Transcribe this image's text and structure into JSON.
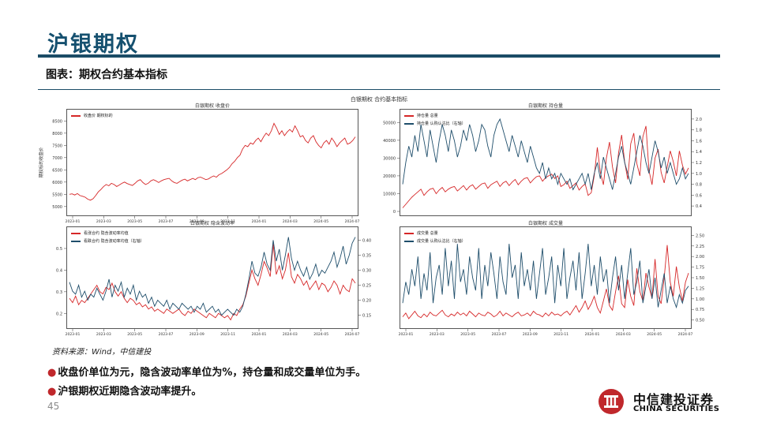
{
  "slide": {
    "title": "沪银期权",
    "subtitle": "图表：期权合约基本指标",
    "source": "资料来源：Wind，中信建投",
    "bullets": [
      "收盘价单位为元，隐含波动率单位为%，持仓量和成交量单位为手。",
      "沪银期权近期隐含波动率提升。"
    ],
    "page_number": "45",
    "logo_cn": "中信建投证券",
    "logo_en": "CHINA SECURITIES",
    "figure_title": "白银期权 合约基本指标",
    "colors": {
      "title": "#15506f",
      "rule": "#1b4c66",
      "red": "#d62728",
      "blue": "#1f4e6b",
      "bullet": "#c0282c"
    }
  },
  "chart_data": [
    {
      "type": "line",
      "title": "白银期权 收盘价",
      "ylabel": "期权标的收盘价",
      "legend": [
        "收盘价 期权标的"
      ],
      "x_ticks": [
        "2023-01",
        "2023-03",
        "2023-05",
        "2023-07",
        "2023-09",
        "2023-11",
        "2024-01",
        "2024-03",
        "2024-05",
        "2024-07"
      ],
      "y_ticks": [
        "5000",
        "5500",
        "6000",
        "6500",
        "7000",
        "7500",
        "8000",
        "8500"
      ],
      "ylim": [
        4800,
        8800
      ],
      "series": [
        {
          "name": "收盘价 期权标的",
          "color": "#d62728",
          "values": [
            5500,
            5520,
            5470,
            5530,
            5450,
            5420,
            5380,
            5300,
            5260,
            5320,
            5450,
            5600,
            5700,
            5820,
            5900,
            5850,
            5950,
            5900,
            5820,
            5880,
            5950,
            6000,
            5940,
            5900,
            5860,
            5950,
            6050,
            6100,
            5980,
            5900,
            5950,
            6050,
            6100,
            6050,
            5980,
            6050,
            6100,
            6130,
            6150,
            6050,
            5980,
            5950,
            6020,
            6080,
            6120,
            6050,
            6100,
            6150,
            6100,
            6180,
            6200,
            6150,
            6100,
            6130,
            6200,
            6250,
            6200,
            6300,
            6350,
            6420,
            6500,
            6600,
            6750,
            6850,
            7000,
            7100,
            7350,
            7500,
            7450,
            7600,
            7550,
            7700,
            7800,
            7650,
            7850,
            8000,
            7900,
            8100,
            8400,
            8200,
            7950,
            8100,
            7900,
            8050,
            8150,
            8050,
            8300,
            8100,
            7850,
            7900,
            7700,
            7600,
            7800,
            7900,
            7650,
            7500,
            7400,
            7600,
            7700,
            7550,
            7800,
            7650,
            7450,
            7600,
            7700,
            7800,
            7550,
            7600,
            7700,
            7850
          ]
        }
      ]
    },
    {
      "type": "line",
      "title": "白银期权 持仓量",
      "legend": [
        "持仓量 总量",
        "持仓量 认购认沽比（右轴）"
      ],
      "x_ticks": [],
      "y_ticks": [
        "0",
        "10000",
        "20000",
        "30000",
        "40000",
        "50000"
      ],
      "y2_ticks": [
        "0.4",
        "0.6",
        "0.8",
        "1.0",
        "1.2",
        "1.4",
        "1.6",
        "1.8",
        "2.0"
      ],
      "ylim": [
        0,
        55000
      ],
      "y2lim": [
        0.3,
        2.1
      ],
      "series": [
        {
          "name": "持仓量 总量",
          "axis": "left",
          "color": "#d62728",
          "values": [
            2000,
            4000,
            6000,
            8000,
            9500,
            11000,
            12500,
            9000,
            11000,
            12500,
            13000,
            10000,
            12000,
            13500,
            11000,
            12500,
            13500,
            14000,
            11500,
            13000,
            14500,
            12000,
            14000,
            15000,
            12500,
            14000,
            15500,
            16000,
            13000,
            15000,
            16000,
            17000,
            14000,
            16000,
            17000,
            14500,
            16500,
            18000,
            15000,
            17000,
            18500,
            19000,
            16000,
            18000,
            19500,
            20000,
            17000,
            19000,
            20000,
            21000,
            18500,
            20000,
            14000,
            15000,
            17000,
            13000,
            14500,
            16000,
            12000,
            14000,
            15500,
            9000,
            10500,
            20000,
            36000,
            22000,
            15000,
            30000,
            39000,
            25000,
            16000,
            33000,
            43000,
            28000,
            18000,
            38000,
            44000,
            27000,
            20000,
            42000,
            48000,
            23000,
            15000,
            30000,
            35000,
            22000,
            16000,
            25000,
            34000,
            28000,
            20000,
            34000,
            26000,
            21000,
            24500
          ]
        },
        {
          "name": "持仓量 认购认沽比（右轴）",
          "axis": "right",
          "color": "#1f4e6b",
          "values": [
            0.8,
            1.2,
            1.5,
            1.3,
            1.7,
            1.4,
            1.9,
            1.6,
            1.3,
            1.8,
            1.5,
            1.2,
            1.6,
            1.9,
            1.7,
            1.4,
            1.8,
            1.6,
            1.3,
            1.5,
            1.8,
            1.6,
            1.9,
            1.7,
            1.4,
            1.6,
            1.9,
            1.8,
            1.5,
            1.3,
            1.7,
            1.9,
            2.0,
            1.8,
            1.6,
            1.4,
            1.7,
            1.5,
            1.3,
            1.6,
            1.4,
            1.2,
            1.5,
            1.3,
            1.1,
            1.0,
            1.2,
            0.9,
            1.1,
            0.9,
            1.0,
            0.8,
            1.0,
            0.9,
            0.8,
            0.9,
            0.7,
            0.8,
            0.9,
            1.0,
            0.8,
            1.0,
            0.7,
            1.0,
            1.2,
            0.9,
            1.3,
            1.1,
            0.9,
            0.7,
            1.0,
            1.3,
            1.5,
            1.2,
            1.0,
            0.8,
            1.1,
            1.4,
            1.7,
            1.5,
            1.2,
            1.0,
            1.3,
            1.6,
            1.4,
            1.1,
            1.3,
            1.0,
            1.2,
            1.0,
            0.8,
            0.9,
            1.1,
            0.9,
            1.0
          ]
        }
      ]
    },
    {
      "type": "line",
      "title": "白银期权 隐含波动率",
      "legend": [
        "看涨合约 隐含波动率均值",
        "看跌合约 隐含波动率均值（右轴）"
      ],
      "x_ticks": [
        "2023-01",
        "2023-03",
        "2023-05",
        "2023-07",
        "2023-09",
        "2023-11",
        "2024-01",
        "2024-03",
        "2024-05",
        "2024-07"
      ],
      "y_ticks": [
        "0.2",
        "0.3",
        "0.4",
        "0.5"
      ],
      "y2_ticks": [
        "0.15",
        "0.20",
        "0.25",
        "0.30",
        "0.35",
        "0.40"
      ],
      "ylim": [
        0.15,
        0.58
      ],
      "y2lim": [
        0.12,
        0.43
      ],
      "series": [
        {
          "name": "看涨合约 隐含波动率均值",
          "axis": "left",
          "color": "#d62728",
          "values": [
            0.27,
            0.25,
            0.28,
            0.24,
            0.26,
            0.25,
            0.27,
            0.29,
            0.31,
            0.33,
            0.3,
            0.29,
            0.32,
            0.31,
            0.34,
            0.3,
            0.28,
            0.3,
            0.27,
            0.25,
            0.27,
            0.26,
            0.24,
            0.25,
            0.23,
            0.24,
            0.22,
            0.23,
            0.21,
            0.22,
            0.21,
            0.2,
            0.22,
            0.21,
            0.2,
            0.21,
            0.22,
            0.2,
            0.19,
            0.21,
            0.2,
            0.22,
            0.21,
            0.2,
            0.19,
            0.18,
            0.2,
            0.19,
            0.18,
            0.2,
            0.19,
            0.18,
            0.19,
            0.17,
            0.2,
            0.19,
            0.22,
            0.24,
            0.28,
            0.34,
            0.4,
            0.36,
            0.33,
            0.38,
            0.44,
            0.41,
            0.37,
            0.52,
            0.38,
            0.42,
            0.36,
            0.4,
            0.48,
            0.37,
            0.34,
            0.38,
            0.36,
            0.33,
            0.35,
            0.31,
            0.33,
            0.35,
            0.31,
            0.34,
            0.33,
            0.3,
            0.32,
            0.35,
            0.33,
            0.29,
            0.33,
            0.31,
            0.3,
            0.36,
            0.34
          ]
        },
        {
          "name": "看跌合约 隐含波动率均值（右轴）",
          "axis": "right",
          "color": "#1f4e6b",
          "values": [
            0.26,
            0.23,
            0.22,
            0.25,
            0.21,
            0.23,
            0.2,
            0.22,
            0.21,
            0.24,
            0.22,
            0.2,
            0.23,
            0.27,
            0.21,
            0.25,
            0.23,
            0.26,
            0.21,
            0.24,
            0.22,
            0.25,
            0.2,
            0.23,
            0.21,
            0.22,
            0.19,
            0.21,
            0.18,
            0.2,
            0.19,
            0.18,
            0.2,
            0.17,
            0.19,
            0.18,
            0.17,
            0.19,
            0.18,
            0.17,
            0.18,
            0.16,
            0.18,
            0.17,
            0.19,
            0.16,
            0.17,
            0.18,
            0.16,
            0.17,
            0.15,
            0.16,
            0.17,
            0.16,
            0.15,
            0.17,
            0.16,
            0.18,
            0.22,
            0.27,
            0.33,
            0.29,
            0.28,
            0.31,
            0.36,
            0.32,
            0.3,
            0.4,
            0.33,
            0.37,
            0.3,
            0.35,
            0.41,
            0.34,
            0.3,
            0.33,
            0.3,
            0.28,
            0.31,
            0.27,
            0.29,
            0.32,
            0.28,
            0.3,
            0.29,
            0.31,
            0.33,
            0.36,
            0.31,
            0.34,
            0.38,
            0.32,
            0.35,
            0.39,
            0.41
          ]
        }
      ]
    },
    {
      "type": "line",
      "title": "白银期权 成交量",
      "legend": [
        "成交量 总量",
        "成交量 认购认沽比（右轴）"
      ],
      "x_ticks": [
        "2023-01",
        "2023-03",
        "2023-05",
        "2023-07",
        "2023-09",
        "2023-11",
        "2024-01",
        "2024-03",
        "2024-05",
        "2024-07"
      ],
      "y_ticks": [],
      "y2_ticks": [
        "0.50",
        "0.75",
        "1.00",
        "1.25",
        "1.50",
        "1.75",
        "2.00",
        "2.25",
        "2.50"
      ],
      "ylim": [
        0,
        100
      ],
      "y2lim": [
        0.4,
        2.6
      ],
      "series": [
        {
          "name": "成交量 总量",
          "axis": "left",
          "color": "#d62728",
          "values": [
            8,
            12,
            6,
            10,
            14,
            9,
            7,
            11,
            8,
            13,
            10,
            9,
            12,
            15,
            10,
            8,
            11,
            9,
            13,
            10,
            12,
            9,
            14,
            11,
            8,
            12,
            10,
            9,
            13,
            11,
            8,
            10,
            14,
            9,
            12,
            10,
            8,
            11,
            13,
            9,
            10,
            12,
            9,
            14,
            11,
            10,
            8,
            12,
            9,
            13,
            10,
            11,
            9,
            12,
            14,
            10,
            15,
            20,
            13,
            18,
            25,
            16,
            22,
            30,
            18,
            12,
            25,
            38,
            20,
            15,
            35,
            52,
            22,
            18,
            48,
            30,
            20,
            60,
            35,
            25,
            55,
            40,
            28,
            70,
            30,
            22,
            50,
            85,
            45,
            30,
            62,
            40,
            25,
            45,
            55
          ]
        },
        {
          "name": "成交量 认购认沽比（右轴）",
          "axis": "right",
          "color": "#1f4e6b",
          "values": [
            0.9,
            1.4,
            1.1,
            1.7,
            1.3,
            2.0,
            1.0,
            1.6,
            1.2,
            2.1,
            0.9,
            1.5,
            1.8,
            1.1,
            2.2,
            1.3,
            1.9,
            1.0,
            2.3,
            1.4,
            1.7,
            1.1,
            2.0,
            1.5,
            1.2,
            2.2,
            1.0,
            1.8,
            1.3,
            2.1,
            1.6,
            1.0,
            2.0,
            1.4,
            1.1,
            2.3,
            1.5,
            1.8,
            1.0,
            2.1,
            1.3,
            1.7,
            1.2,
            1.9,
            1.0,
            1.6,
            2.2,
            1.1,
            1.5,
            2.0,
            0.9,
            1.8,
            1.3,
            2.2,
            1.0,
            1.5,
            1.9,
            1.2,
            2.1,
            1.0,
            1.6,
            2.3,
            1.3,
            1.8,
            1.1,
            2.0,
            1.4,
            1.7,
            0.9,
            1.5,
            2.0,
            1.2,
            1.8,
            1.0,
            1.6,
            2.2,
            1.1,
            1.4,
            1.9,
            0.9,
            1.3,
            1.7,
            1.0,
            1.5,
            0.8,
            1.2,
            1.6,
            0.9,
            1.3,
            1.0,
            0.8,
            1.1,
            0.9,
            1.2,
            1.3
          ]
        }
      ]
    }
  ]
}
